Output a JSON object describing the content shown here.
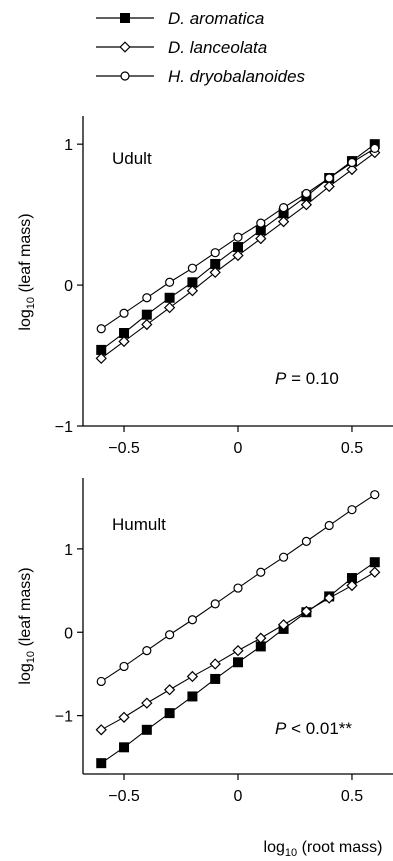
{
  "legend": [
    {
      "name": "D. aromatica",
      "marker": "filled-square"
    },
    {
      "name": "D. lanceolata",
      "marker": "open-diamond"
    },
    {
      "name": "H. dryobalanoides",
      "marker": "open-circle"
    }
  ],
  "chart_data": [
    {
      "type": "line",
      "panel_label": "Udult",
      "annotation": {
        "prefix": "P",
        "text": " = 0.10"
      },
      "xlabel": "",
      "ylabel": "log10 (leaf mass)",
      "ylabel_parts": {
        "pre": "log",
        "sub": "10",
        "post": " (leaf mass)"
      },
      "xlim": [
        -0.68,
        0.68
      ],
      "ylim": [
        -1,
        1.2
      ],
      "xticks": [
        -0.5,
        0,
        0.5
      ],
      "xtick_labels": [
        "−0.5",
        "0",
        "0.5"
      ],
      "yticks": [
        -1,
        0,
        1
      ],
      "ytick_labels": [
        "−1",
        "0",
        "1"
      ],
      "grid": false,
      "x": [
        -0.6,
        -0.5,
        -0.4,
        -0.3,
        -0.2,
        -0.1,
        0,
        0.1,
        0.2,
        0.3,
        0.4,
        0.5,
        0.6
      ],
      "series": [
        {
          "name": "D. aromatica",
          "marker": "filled-square",
          "values": [
            -0.46,
            -0.34,
            -0.21,
            -0.09,
            0.02,
            0.15,
            0.27,
            0.39,
            0.51,
            0.63,
            0.76,
            0.88,
            1.0
          ]
        },
        {
          "name": "D. lanceolata",
          "marker": "open-diamond",
          "values": [
            -0.52,
            -0.4,
            -0.28,
            -0.16,
            -0.04,
            0.09,
            0.21,
            0.33,
            0.45,
            0.57,
            0.7,
            0.82,
            0.94
          ]
        },
        {
          "name": "H. dryobalanoides",
          "marker": "open-circle",
          "values": [
            -0.31,
            -0.2,
            -0.09,
            0.02,
            0.12,
            0.23,
            0.34,
            0.44,
            0.55,
            0.65,
            0.76,
            0.87,
            0.97
          ]
        }
      ]
    },
    {
      "type": "line",
      "panel_label": "Humult",
      "annotation": {
        "prefix": "P",
        "text": " < 0.01**"
      },
      "xlabel": "log10 (root mass)",
      "xlabel_parts": {
        "pre": "log",
        "sub": "10",
        "post": " (root mass)"
      },
      "ylabel": "log10 (leaf mass)",
      "ylabel_parts": {
        "pre": "log",
        "sub": "10",
        "post": " (leaf mass)"
      },
      "xlim": [
        -0.68,
        0.68
      ],
      "ylim": [
        -1.7,
        1.85
      ],
      "xticks": [
        -0.5,
        0,
        0.5
      ],
      "xtick_labels": [
        "−0.5",
        "0",
        "0.5"
      ],
      "yticks": [
        -1,
        0,
        1
      ],
      "ytick_labels": [
        "−1",
        "0",
        "1"
      ],
      "grid": false,
      "x": [
        -0.6,
        -0.5,
        -0.4,
        -0.3,
        -0.2,
        -0.1,
        0,
        0.1,
        0.2,
        0.3,
        0.4,
        0.5,
        0.6
      ],
      "series": [
        {
          "name": "D. aromatica",
          "marker": "filled-square",
          "values": [
            -1.57,
            -1.38,
            -1.17,
            -0.97,
            -0.77,
            -0.56,
            -0.36,
            -0.17,
            0.04,
            0.24,
            0.43,
            0.65,
            0.84
          ]
        },
        {
          "name": "D. lanceolata",
          "marker": "open-diamond",
          "values": [
            -1.17,
            -1.02,
            -0.85,
            -0.69,
            -0.53,
            -0.38,
            -0.22,
            -0.07,
            0.09,
            0.25,
            0.41,
            0.56,
            0.72
          ]
        },
        {
          "name": "H. dryobalanoides",
          "marker": "open-circle",
          "values": [
            -0.59,
            -0.41,
            -0.22,
            -0.03,
            0.15,
            0.34,
            0.53,
            0.72,
            0.9,
            1.09,
            1.28,
            1.47,
            1.65
          ]
        }
      ]
    }
  ]
}
